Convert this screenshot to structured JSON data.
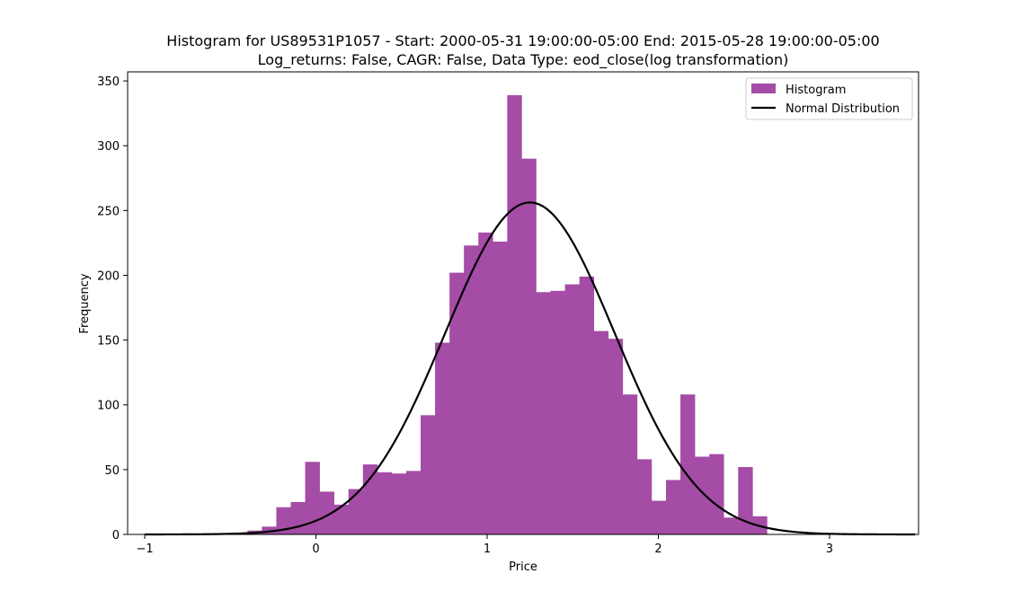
{
  "chart_data": {
    "type": "bar",
    "title_line1": "Histogram for US89531P1057 - Start: 2000-05-31 19:00:00-05:00 End: 2015-05-28 19:00:00-05:00",
    "title_line2": "Log_returns: False, CAGR: False, Data Type: eod_close(log transformation)",
    "xlabel": "Price",
    "ylabel": "Frequency",
    "xlim": [
      -1.1,
      3.52
    ],
    "ylim": [
      0,
      357
    ],
    "xticks": [
      -1,
      0,
      1,
      2,
      3
    ],
    "yticks": [
      0,
      50,
      100,
      150,
      200,
      250,
      300,
      350
    ],
    "xtick_labels": [
      "−1",
      "0",
      "1",
      "2",
      "3"
    ],
    "ytick_labels": [
      "0",
      "50",
      "100",
      "150",
      "200",
      "250",
      "300",
      "350"
    ],
    "bin_start": -0.4,
    "bin_width": 0.0843,
    "counts": [
      3,
      6,
      21,
      25,
      56,
      33,
      23,
      35,
      54,
      48,
      47,
      49,
      92,
      148,
      202,
      223,
      233,
      226,
      339,
      290,
      187,
      188,
      193,
      199,
      157,
      151,
      108,
      58,
      26,
      42,
      108,
      60,
      62,
      13,
      52,
      14
    ],
    "normal_fit": {
      "mean": 1.25,
      "std": 0.495,
      "xmin": -1.0,
      "xmax": 3.5
    },
    "colors": {
      "histogram": "#a44ca6",
      "normal": "#000000"
    },
    "legend": {
      "position": "upper-right",
      "entries": [
        {
          "label": "Histogram",
          "kind": "patch"
        },
        {
          "label": "Normal Distribution",
          "kind": "line"
        }
      ]
    },
    "grid": false
  }
}
